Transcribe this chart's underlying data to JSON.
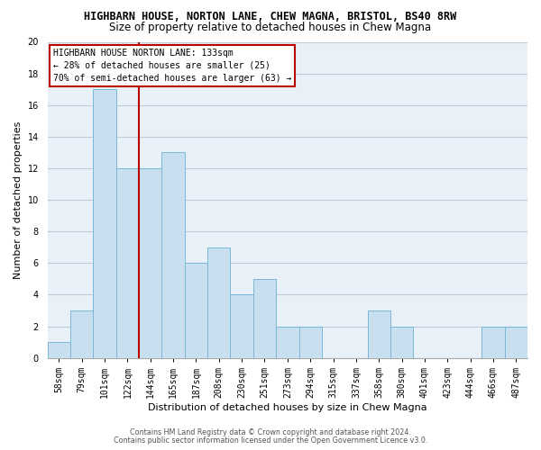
{
  "title": "HIGHBARN HOUSE, NORTON LANE, CHEW MAGNA, BRISTOL, BS40 8RW",
  "subtitle": "Size of property relative to detached houses in Chew Magna",
  "xlabel": "Distribution of detached houses by size in Chew Magna",
  "ylabel": "Number of detached properties",
  "categories": [
    "58sqm",
    "79sqm",
    "101sqm",
    "122sqm",
    "144sqm",
    "165sqm",
    "187sqm",
    "208sqm",
    "230sqm",
    "251sqm",
    "273sqm",
    "294sqm",
    "315sqm",
    "337sqm",
    "358sqm",
    "380sqm",
    "401sqm",
    "423sqm",
    "444sqm",
    "466sqm",
    "487sqm"
  ],
  "values": [
    1,
    3,
    17,
    12,
    12,
    13,
    6,
    7,
    4,
    5,
    2,
    2,
    0,
    0,
    3,
    2,
    0,
    0,
    0,
    2,
    2
  ],
  "bar_color": "#c8dff0",
  "bar_edge_color": "#7ab8d8",
  "vline_color": "#bb0000",
  "vline_x_idx": 3.5,
  "annotation_text": "HIGHBARN HOUSE NORTON LANE: 133sqm\n← 28% of detached houses are smaller (25)\n70% of semi-detached houses are larger (63) →",
  "annotation_box_edgecolor": "#bb0000",
  "annotation_box_facecolor": "white",
  "ylim": [
    0,
    20
  ],
  "yticks": [
    0,
    2,
    4,
    6,
    8,
    10,
    12,
    14,
    16,
    18,
    20
  ],
  "grid_color": "#c0ccd8",
  "plot_bg_color": "#e8f0f8",
  "footer_line1": "Contains HM Land Registry data © Crown copyright and database right 2024.",
  "footer_line2": "Contains public sector information licensed under the Open Government Licence v3.0.",
  "title_fontsize": 8.5,
  "subtitle_fontsize": 8.5,
  "tick_fontsize": 7,
  "ylabel_fontsize": 8,
  "xlabel_fontsize": 8,
  "annot_fontsize": 7,
  "footer_fontsize": 5.8
}
